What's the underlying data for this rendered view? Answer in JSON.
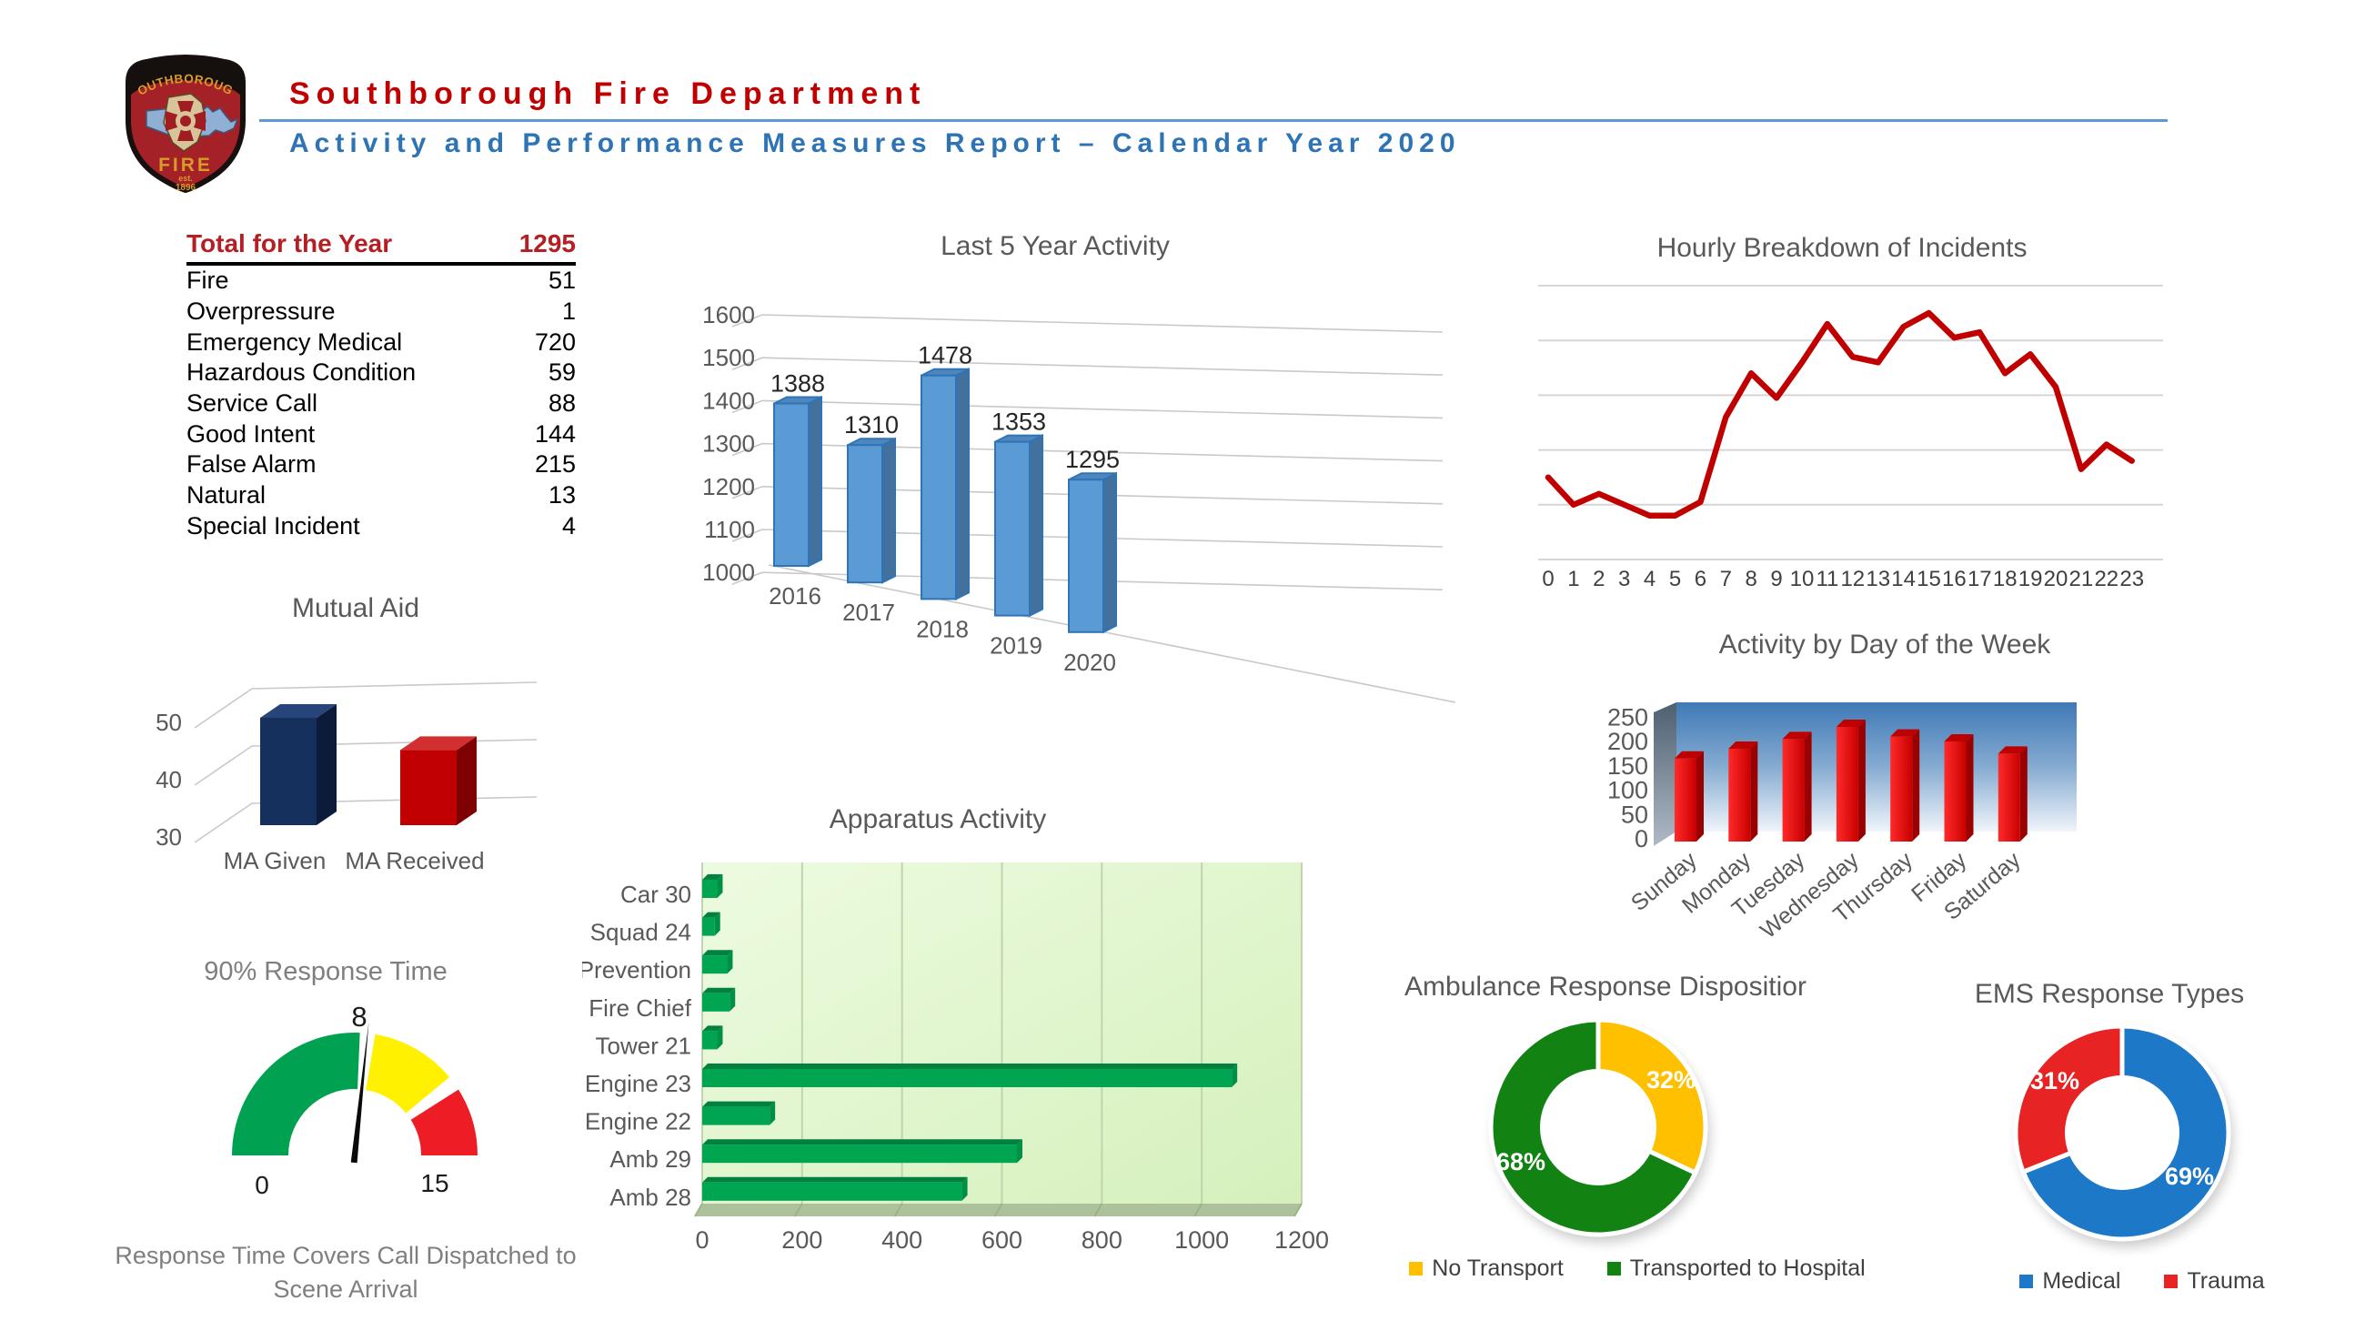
{
  "header": {
    "title": "Southborough Fire Department",
    "subtitle": "Activity and Performance Measures Report – Calendar Year 2020",
    "title_color": "#C00000",
    "subtitle_color": "#2E74B5",
    "rule_color": "#5B9BD5",
    "logo": {
      "band_text": "SOUTHBOROUGH",
      "fire_text": "FIRE",
      "est_text": "est.",
      "year_text": "1896"
    }
  },
  "totals_table": {
    "header": {
      "label": "Total for the Year",
      "value": "1295"
    },
    "rows": [
      {
        "label": "Fire",
        "value": "51"
      },
      {
        "label": "Overpressure",
        "value": "1"
      },
      {
        "label": "Emergency Medical",
        "value": "720"
      },
      {
        "label": "Hazardous Condition",
        "value": "59"
      },
      {
        "label": "Service Call",
        "value": "88"
      },
      {
        "label": "Good Intent",
        "value": "144"
      },
      {
        "label": "False Alarm",
        "value": "215"
      },
      {
        "label": "Natural",
        "value": "13"
      },
      {
        "label": "Special Incident",
        "value": "4"
      }
    ]
  },
  "chart_data": [
    {
      "id": "last5",
      "type": "bar",
      "title": "Last 5 Year Activity",
      "categories": [
        "2016",
        "2017",
        "2018",
        "2019",
        "2020"
      ],
      "values": [
        1388,
        1310,
        1478,
        1353,
        1295
      ],
      "yticks": [
        1000,
        1100,
        1200,
        1300,
        1400,
        1500,
        1600
      ],
      "ylim": [
        1000,
        1600
      ],
      "bar_color": "#5B9BD5",
      "bar_border": "#2E74B6",
      "bar_side": "#41719C",
      "bar_top": "#4F86BD"
    },
    {
      "id": "hourly",
      "type": "line",
      "title": "Hourly Breakdown of Incidents",
      "x": [
        0,
        1,
        2,
        3,
        4,
        5,
        6,
        7,
        8,
        9,
        10,
        11,
        12,
        13,
        14,
        15,
        16,
        17,
        18,
        19,
        20,
        21,
        22,
        23
      ],
      "values": [
        30,
        20,
        24,
        20,
        16,
        16,
        21,
        52,
        68,
        59,
        72,
        86,
        74,
        72,
        85,
        90,
        81,
        83,
        68,
        75,
        63,
        33,
        42,
        36
      ],
      "ylim": [
        0,
        100
      ],
      "gridlines": 6,
      "line_color": "#C00000"
    },
    {
      "id": "mutual",
      "type": "bar",
      "title": "Mutual Aid",
      "categories": [
        "MA Given",
        "MA Received"
      ],
      "values": [
        50,
        44
      ],
      "yticks": [
        30,
        40,
        50
      ],
      "ylim": [
        30,
        55
      ],
      "colors": [
        "#16305E",
        "#C00000"
      ]
    },
    {
      "id": "apparatus",
      "type": "bar",
      "orientation": "horizontal",
      "title": "Apparatus Activity",
      "categories": [
        "Car 30",
        "Squad 24",
        "Prevention",
        "Fire Chief",
        "Tower 21",
        "Engine 23",
        "Engine 22",
        "Amb 29",
        "Amb 28"
      ],
      "values": [
        30,
        25,
        50,
        55,
        30,
        1060,
        135,
        630,
        520
      ],
      "xticks": [
        0,
        200,
        400,
        600,
        800,
        1000,
        1200
      ],
      "xlim": [
        0,
        1200
      ],
      "bar_color": "#00A551"
    },
    {
      "id": "dayweek",
      "type": "bar",
      "title": "Activity by Day of the Week",
      "categories": [
        "Sunday",
        "Monday",
        "Tuesday",
        "Wednesday",
        "Thursday",
        "Friday",
        "Saturday"
      ],
      "values": [
        165,
        185,
        205,
        230,
        210,
        200,
        175
      ],
      "yticks": [
        0,
        50,
        100,
        150,
        200,
        250
      ],
      "ylim": [
        0,
        250
      ],
      "bar_color": "#E81010",
      "wall_color_top": "#3E79B6"
    },
    {
      "id": "gauge",
      "type": "gauge",
      "title": "90% Response Time",
      "min": 0,
      "max": 15,
      "value": 8,
      "value_label": "8",
      "min_label": "0",
      "max_label": "15",
      "segments": [
        {
          "from": 0,
          "to": 7.7,
          "color": "#00A150"
        },
        {
          "from": 8.3,
          "to": 11.7,
          "color": "#FFF100"
        },
        {
          "from": 12.3,
          "to": 15,
          "color": "#EE1C25"
        }
      ],
      "caption_line1": "Response Time Covers Call Dispatched to",
      "caption_line2": "Scene Arrival"
    },
    {
      "id": "ambulance",
      "type": "pie",
      "title": "Ambulance Response Dispositior",
      "slices": [
        {
          "label": "No Transport",
          "pct": 32,
          "pct_label": "32%",
          "color": "#FFC000"
        },
        {
          "label": "Transported to Hospital",
          "pct": 68,
          "pct_label": "68%",
          "color": "#128312"
        }
      ]
    },
    {
      "id": "ems",
      "type": "pie",
      "title": "EMS Response Types",
      "slices": [
        {
          "label": "Medical",
          "pct": 69,
          "pct_label": "69%",
          "color": "#1E78C8"
        },
        {
          "label": "Trauma",
          "pct": 31,
          "pct_label": "31%",
          "color": "#E82323"
        }
      ]
    }
  ]
}
